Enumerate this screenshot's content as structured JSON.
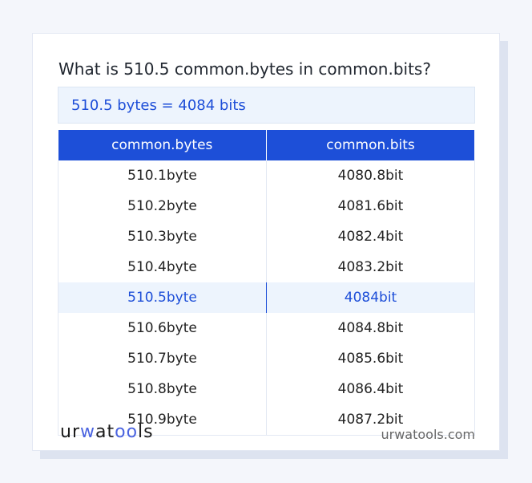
{
  "title": "What is 510.5 common.bytes in common.bits?",
  "answer": "510.5 bytes = 4084 bits",
  "table": {
    "headers": [
      "common.bytes",
      "common.bits"
    ],
    "rows": [
      [
        "510.1byte",
        "4080.8bit"
      ],
      [
        "510.2byte",
        "4081.6bit"
      ],
      [
        "510.3byte",
        "4082.4bit"
      ],
      [
        "510.4byte",
        "4083.2bit"
      ],
      [
        "510.5byte",
        "4084bit"
      ],
      [
        "510.6byte",
        "4084.8bit"
      ],
      [
        "510.7byte",
        "4085.6bit"
      ],
      [
        "510.8byte",
        "4086.4bit"
      ],
      [
        "510.9byte",
        "4087.2bit"
      ]
    ],
    "highlighted_row": 4
  },
  "footer": {
    "logo": "urwatools",
    "logo_parts": [
      "ur",
      "w",
      "at",
      "oo",
      "ls"
    ],
    "site": "urwatools.com"
  },
  "colors": {
    "accent": "#1d4fd8",
    "highlight_bg": "#edf4fd"
  }
}
